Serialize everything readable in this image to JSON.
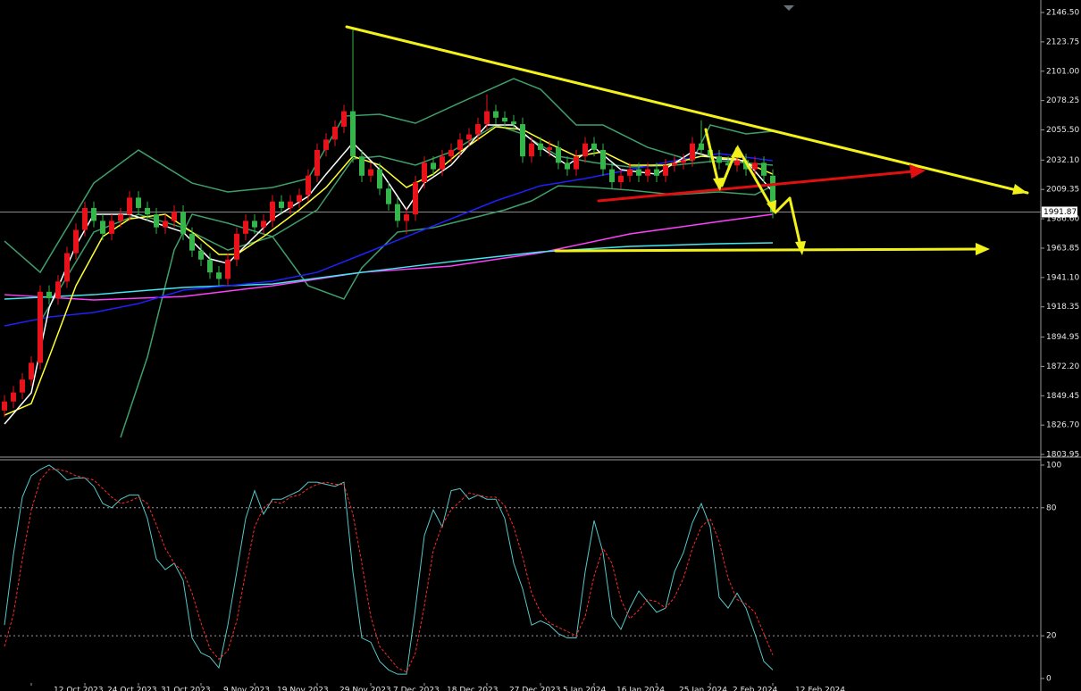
{
  "chart_data": [
    {
      "type": "candlestick",
      "categories": [
        null,
        null,
        null,
        "12 Oct 2023",
        null,
        null,
        null,
        null,
        null,
        "24 Oct 2023",
        null,
        null,
        null,
        null,
        null,
        "31 Oct 2023",
        null,
        null,
        null,
        null,
        null,
        null,
        "9 Nov 2023",
        null,
        null,
        null,
        null,
        null,
        "19 Nov 2023",
        null,
        null,
        null,
        null,
        null,
        null,
        "29 Nov 2023",
        null,
        null,
        null,
        null,
        null,
        "7 Dec 2023",
        null,
        null,
        null,
        null,
        null,
        "18 Dec 2023",
        null,
        null,
        null,
        null,
        null,
        null,
        "27 Dec 2023",
        null,
        null,
        null,
        null,
        null,
        "5 Jan 2024",
        null,
        null,
        null,
        null,
        null,
        "16 Jan 2024",
        null,
        null,
        null,
        null,
        null,
        null,
        "25 Jan 2024",
        null,
        null,
        null,
        null,
        null,
        "2 Feb 2024",
        null,
        null,
        null,
        null,
        null,
        null,
        "12 Feb 2024"
      ],
      "open": [
        1838,
        1845,
        1852,
        1862,
        1875,
        1930,
        1925,
        1938,
        1960,
        1978,
        1995,
        1985,
        1975,
        1985,
        1990,
        2003,
        1995,
        1990,
        1980,
        1985,
        1992,
        1975,
        1962,
        1955,
        1945,
        1940,
        1955,
        1975,
        1985,
        1980,
        1985,
        2000,
        1995,
        2000,
        2005,
        2020,
        2040,
        2048,
        2058,
        2070,
        2035,
        2020,
        2025,
        2010,
        1998,
        1985,
        1990,
        2015,
        2030,
        2025,
        2035,
        2040,
        2048,
        2052,
        2060,
        2070,
        2065,
        2062,
        2060,
        2035,
        2045,
        2040,
        2042,
        2030,
        2025,
        2035,
        2045,
        2040,
        2025,
        2015,
        2020,
        2025,
        2020,
        2025,
        2020,
        2028,
        2030,
        2032,
        2045,
        2040,
        2035,
        2030,
        2028,
        2032,
        2025,
        2030,
        2020
      ],
      "high": [
        1850,
        1857,
        1867,
        1880,
        1935,
        1935,
        1943,
        1965,
        1983,
        2000,
        2000,
        1990,
        1990,
        1995,
        2008,
        2008,
        2000,
        1995,
        1990,
        1997,
        1997,
        1980,
        1967,
        1960,
        1950,
        1960,
        1980,
        1990,
        1990,
        1990,
        2005,
        2005,
        2005,
        2010,
        2025,
        2045,
        2053,
        2063,
        2075,
        2135,
        2040,
        2030,
        2030,
        2015,
        2003,
        1995,
        2020,
        2035,
        2035,
        2040,
        2045,
        2053,
        2057,
        2065,
        2083,
        2075,
        2070,
        2067,
        2065,
        2050,
        2050,
        2047,
        2047,
        2035,
        2040,
        2050,
        2050,
        2045,
        2030,
        2025,
        2030,
        2030,
        2030,
        2030,
        2033,
        2035,
        2037,
        2050,
        2063,
        2045,
        2040,
        2035,
        2037,
        2037,
        2035,
        2035,
        2025
      ],
      "low": [
        1833,
        1840,
        1847,
        1857,
        1870,
        1920,
        1920,
        1933,
        1955,
        1973,
        1980,
        1970,
        1970,
        1980,
        1985,
        1990,
        1985,
        1975,
        1975,
        1980,
        1970,
        1957,
        1950,
        1940,
        1935,
        1935,
        1950,
        1970,
        1975,
        1975,
        1980,
        1990,
        1990,
        1995,
        2000,
        2015,
        2035,
        2043,
        2053,
        2030,
        2015,
        2015,
        2005,
        1993,
        1980,
        1975,
        1985,
        2010,
        2020,
        2020,
        2030,
        2035,
        2043,
        2047,
        2055,
        2060,
        2057,
        2055,
        2030,
        2030,
        2035,
        2035,
        2025,
        2020,
        2020,
        2030,
        2035,
        2020,
        2010,
        2010,
        2015,
        2015,
        2015,
        2015,
        2015,
        2023,
        2025,
        2027,
        2035,
        2030,
        2025,
        2023,
        2023,
        2020,
        2020,
        2015,
        1987
      ],
      "close": [
        1845,
        1852,
        1862,
        1875,
        1930,
        1925,
        1938,
        1960,
        1978,
        1995,
        1985,
        1975,
        1985,
        1990,
        2003,
        1995,
        1990,
        1980,
        1985,
        1992,
        1975,
        1962,
        1955,
        1945,
        1940,
        1955,
        1975,
        1985,
        1980,
        1985,
        2000,
        1995,
        2000,
        2005,
        2020,
        2040,
        2048,
        2058,
        2070,
        2035,
        2020,
        2025,
        2010,
        1998,
        1985,
        1990,
        2015,
        2030,
        2025,
        2035,
        2040,
        2048,
        2052,
        2060,
        2070,
        2065,
        2062,
        2060,
        2035,
        2045,
        2040,
        2042,
        2030,
        2025,
        2035,
        2045,
        2040,
        2025,
        2015,
        2020,
        2025,
        2020,
        2025,
        2020,
        2028,
        2030,
        2032,
        2045,
        2040,
        2035,
        2030,
        2028,
        2032,
        2025,
        2030,
        2020,
        1992
      ],
      "up_color": "#e8131a",
      "down_color": "#35b54a",
      "series": [
        {
          "color": "#3f9f6a",
          "x": [
            0,
            4,
            10,
            15,
            21,
            25,
            30,
            34,
            38,
            42,
            46,
            51,
            57,
            60,
            64,
            67,
            72,
            77,
            79,
            83,
            86
          ],
          "values": [
            1969.3,
            1945.1,
            2014.3,
            2039.9,
            2014.3,
            2007.4,
            2010.9,
            2017.8,
            2066.2,
            2067.6,
            2060.7,
            2076.6,
            2095.3,
            2087.0,
            2059.3,
            2059.3,
            2042.0,
            2031.6,
            2059.3,
            2052.4,
            2054.5
          ]
        },
        {
          "color": "#3f9f6a",
          "x": [
            13,
            16,
            19,
            21,
            25,
            30,
            34,
            38,
            40,
            44,
            48,
            52,
            56,
            59,
            62,
            66,
            70,
            75,
            80,
            84,
            86
          ],
          "values": [
            1817.1,
            1879.4,
            1962.4,
            1990.1,
            1983.2,
            1972.8,
            1934.7,
            1924.4,
            1948.6,
            1976.3,
            1979.7,
            1986.6,
            1993.5,
            2000.5,
            2012.2,
            2010.9,
            2008.8,
            2005.3,
            2007.4,
            2005.3,
            2012.2
          ]
        },
        {
          "color": "#3f9f6a",
          "x": [
            4,
            10,
            15,
            20,
            25,
            30,
            35,
            39,
            42,
            46,
            50,
            55,
            58,
            62,
            66,
            70,
            75,
            80,
            86
          ],
          "values": [
            1907.0,
            1976.3,
            1990.1,
            1979.7,
            1962.4,
            1972.8,
            1993.5,
            2033.0,
            2035.1,
            2028.2,
            2038.5,
            2059.3,
            2052.4,
            2035.1,
            2030.2,
            2026.8,
            2028.2,
            2031.6,
            2028.2
          ]
        },
        {
          "color": "#ff40ff",
          "x": [
            0,
            10,
            20,
            30,
            40,
            50,
            60,
            70,
            80,
            86
          ],
          "values": [
            1927.8,
            1923.7,
            1926.4,
            1934.7,
            1945.1,
            1950.0,
            1960.3,
            1974.9,
            1984.5,
            1990.1
          ]
        },
        {
          "color": "#40e8f0",
          "x": [
            0,
            10,
            20,
            30,
            40,
            50,
            60,
            70,
            80,
            86
          ],
          "values": [
            1924.4,
            1927.8,
            1933.4,
            1936.1,
            1945.1,
            1953.4,
            1961.0,
            1965.2,
            1967.3,
            1968.0
          ]
        },
        {
          "color": "#2020ff",
          "x": [
            0,
            5,
            10,
            15,
            20,
            25,
            30,
            35,
            40,
            45,
            50,
            55,
            60,
            65,
            70,
            75,
            80,
            86
          ],
          "values": [
            1903.6,
            1910.5,
            1914.0,
            1920.9,
            1931.3,
            1934.7,
            1938.2,
            1945.1,
            1958.9,
            1972.8,
            1986.6,
            2000.5,
            2012.2,
            2017.8,
            2024.7,
            2031.6,
            2037.2,
            2031.6
          ]
        },
        {
          "color": "#ffff30",
          "x": [
            0,
            3,
            5,
            8,
            11,
            14,
            18,
            21,
            24,
            26,
            29,
            33,
            36,
            39,
            42,
            45,
            48,
            51,
            55,
            58,
            61,
            64,
            67,
            70,
            74,
            78,
            82,
            86
          ],
          "values": [
            1834.4,
            1843.4,
            1879.4,
            1934.7,
            1972.8,
            1986.6,
            1990.1,
            1976.3,
            1959.0,
            1959.0,
            1972.8,
            1993.5,
            2010.9,
            2035.1,
            2028.2,
            2010.9,
            2021.2,
            2038.5,
            2057.9,
            2055.8,
            2044.9,
            2035.1,
            2038.5,
            2028.2,
            2028.2,
            2035.1,
            2033.0,
            2021.2
          ]
        },
        {
          "color": "#ffffff",
          "x": [
            0,
            3,
            5,
            8,
            10,
            14,
            17,
            20,
            23,
            25,
            27,
            30,
            34,
            36,
            39,
            42,
            45,
            47,
            50,
            54,
            57,
            60,
            63,
            66,
            69,
            73,
            77,
            80,
            83,
            86
          ],
          "values": [
            1827.5,
            1851.7,
            1917.4,
            1965.9,
            1990.1,
            1990.1,
            1983.2,
            1976.3,
            1955.5,
            1952.0,
            1965.9,
            1986.6,
            2004.0,
            2021.2,
            2045.5,
            2024.7,
            1993.6,
            2014.3,
            2028.2,
            2059.3,
            2059.3,
            2042.0,
            2028.2,
            2042.0,
            2024.7,
            2021.2,
            2038.5,
            2033.0,
            2031.6,
            2007.4
          ]
        }
      ],
      "current_price": 1991.87,
      "ylim": [
        1801.9,
        2156.2
      ],
      "yticks": [
        {
          "value": 2146.5,
          "label": "2146.50"
        },
        2123.75,
        {
          "value": 2101,
          "label": "2101.00"
        },
        2078.25,
        {
          "value": 2055.5,
          "label": "2055.50"
        },
        {
          "value": 2032.1,
          "label": "2032.10"
        },
        2009.35,
        {
          "value": 1986.6,
          "label": "1986.60"
        },
        1963.85,
        {
          "value": 1941.1,
          "label": "1941.10"
        },
        1918.35,
        1894.95,
        {
          "value": 1872.2,
          "label": "1872.20"
        },
        1849.45,
        {
          "value": 1826.7,
          "label": "1826.70"
        },
        1803.95
      ]
    },
    {
      "type": "line",
      "series": [
        {
          "color": "#56c8c8",
          "values": [
            25,
            58,
            85,
            95,
            98,
            100,
            97,
            93,
            94,
            94,
            90,
            82,
            80,
            84,
            86,
            86,
            75,
            56,
            51,
            54,
            46,
            19,
            12,
            10,
            5,
            25,
            50,
            75,
            88,
            77,
            84,
            84,
            86,
            88,
            92,
            92,
            91,
            90,
            92,
            50,
            19,
            17,
            8,
            4,
            2,
            2,
            33,
            67,
            79,
            71,
            88,
            89,
            84,
            86,
            84,
            84,
            75,
            54,
            42,
            25,
            27,
            25,
            21,
            19,
            19,
            50,
            74,
            59,
            29,
            23,
            33,
            41,
            36,
            31,
            33,
            50,
            59,
            73,
            82,
            71,
            38,
            33,
            40,
            33,
            21,
            8,
            4
          ]
        },
        {
          "color": "#ff2a2a",
          "dashed": true,
          "values": [
            15,
            30,
            56,
            79,
            93,
            98,
            98,
            97,
            95,
            94,
            93,
            89,
            85,
            82,
            83,
            85,
            82,
            72,
            61,
            54,
            50,
            40,
            26,
            14,
            9,
            13,
            27,
            50,
            71,
            80,
            83,
            82,
            85,
            86,
            89,
            91,
            92,
            91,
            91,
            77,
            54,
            29,
            15,
            10,
            5,
            3,
            12,
            34,
            60,
            72,
            79,
            83,
            87,
            86,
            85,
            85,
            81,
            71,
            57,
            40,
            31,
            26,
            24,
            22,
            20,
            29,
            48,
            61,
            54,
            37,
            28,
            32,
            37,
            36,
            33,
            38,
            47,
            61,
            71,
            75,
            64,
            47,
            37,
            35,
            31,
            21,
            11
          ]
        }
      ],
      "levels": [
        80,
        20
      ],
      "ylim": [
        -4.2,
        102.5
      ],
      "yticks": [
        100,
        80,
        20,
        0
      ]
    }
  ]
}
